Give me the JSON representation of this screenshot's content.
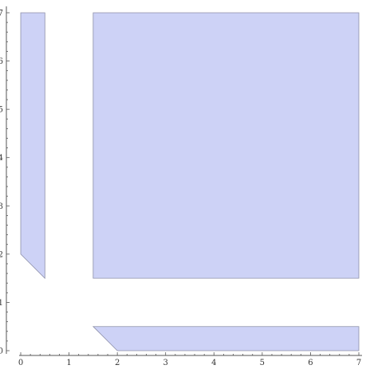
{
  "chart_data": {
    "type": "region-plot",
    "xlim": [
      0,
      7
    ],
    "ylim": [
      0,
      7
    ],
    "x_ticks": [
      "0",
      "1",
      "2",
      "3",
      "4",
      "5",
      "6",
      "7"
    ],
    "y_ticks": [
      "0",
      "1",
      "2",
      "3",
      "4",
      "5",
      "6",
      "7"
    ],
    "fill_color": "#cdd2f6",
    "edge_color": "#8c8fa8",
    "grid": false,
    "regions": [
      {
        "name": "left-strip-region",
        "vertices": [
          [
            0,
            7
          ],
          [
            0.5,
            7
          ],
          [
            0.5,
            1.5
          ],
          [
            0,
            2
          ]
        ]
      },
      {
        "name": "large-square-region",
        "vertices": [
          [
            1.5,
            1.5
          ],
          [
            7,
            1.5
          ],
          [
            7,
            7
          ],
          [
            1.5,
            7
          ]
        ]
      },
      {
        "name": "bottom-strip-region",
        "vertices": [
          [
            1.5,
            0.5
          ],
          [
            7,
            0.5
          ],
          [
            7,
            0
          ],
          [
            2,
            0
          ]
        ]
      }
    ]
  }
}
